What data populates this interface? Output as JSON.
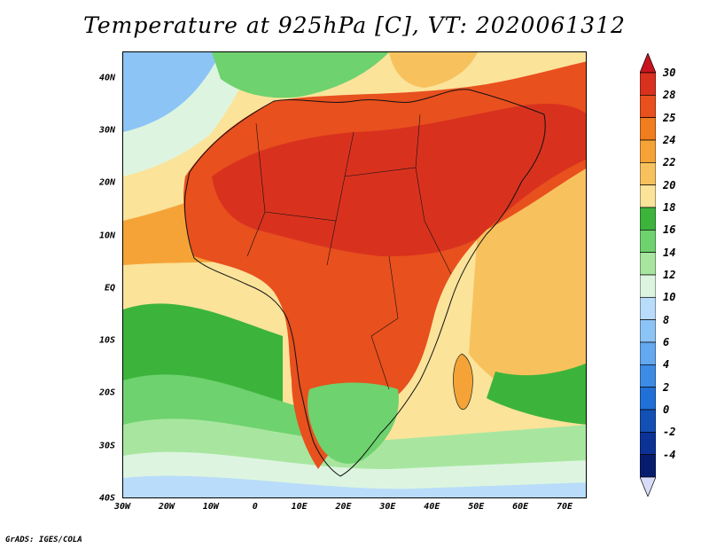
{
  "title": "Temperature at 925hPa [C], VT: 2020061312",
  "credit": "GrADS: IGES/COLA",
  "map": {
    "projection": "latlon",
    "lon_range": [
      -30,
      75
    ],
    "lat_range": [
      -40,
      45
    ],
    "lat_labels": [
      {
        "lat": 40,
        "text": "40N"
      },
      {
        "lat": 30,
        "text": "30N"
      },
      {
        "lat": 20,
        "text": "20N"
      },
      {
        "lat": 10,
        "text": "10N"
      },
      {
        "lat": 0,
        "text": "EQ"
      },
      {
        "lat": -10,
        "text": "10S"
      },
      {
        "lat": -20,
        "text": "20S"
      },
      {
        "lat": -30,
        "text": "30S"
      },
      {
        "lat": -40,
        "text": "40S"
      }
    ],
    "lon_labels": [
      {
        "lon": -30,
        "text": "30W"
      },
      {
        "lon": -20,
        "text": "20W"
      },
      {
        "lon": -10,
        "text": "10W"
      },
      {
        "lon": 0,
        "text": "0"
      },
      {
        "lon": 10,
        "text": "10E"
      },
      {
        "lon": 20,
        "text": "20E"
      },
      {
        "lon": 30,
        "text": "30E"
      },
      {
        "lon": 40,
        "text": "40E"
      },
      {
        "lon": 50,
        "text": "50E"
      },
      {
        "lon": 60,
        "text": "60E"
      },
      {
        "lon": 70,
        "text": "70E"
      }
    ]
  },
  "colorbar": {
    "labels": [
      "30",
      "28",
      "25",
      "24",
      "22",
      "20",
      "18",
      "16",
      "14",
      "12",
      "10",
      "8",
      "6",
      "4",
      "2",
      "0",
      "-2",
      "-4"
    ],
    "colors": [
      "#d8321f",
      "#e8501e",
      "#f07d1e",
      "#f5a337",
      "#f7c25e",
      "#fbe39a",
      "#3cb43c",
      "#6ed26e",
      "#a8e6a0",
      "#ddf5e0",
      "#b8dcfa",
      "#8cc4f5",
      "#64a8f0",
      "#3c8ce6",
      "#2070d8",
      "#1450b4",
      "#0c3296",
      "#081c6e"
    ],
    "top_arrow_color": "#c8141e",
    "bottom_arrow_color": "#d8dcf8"
  }
}
